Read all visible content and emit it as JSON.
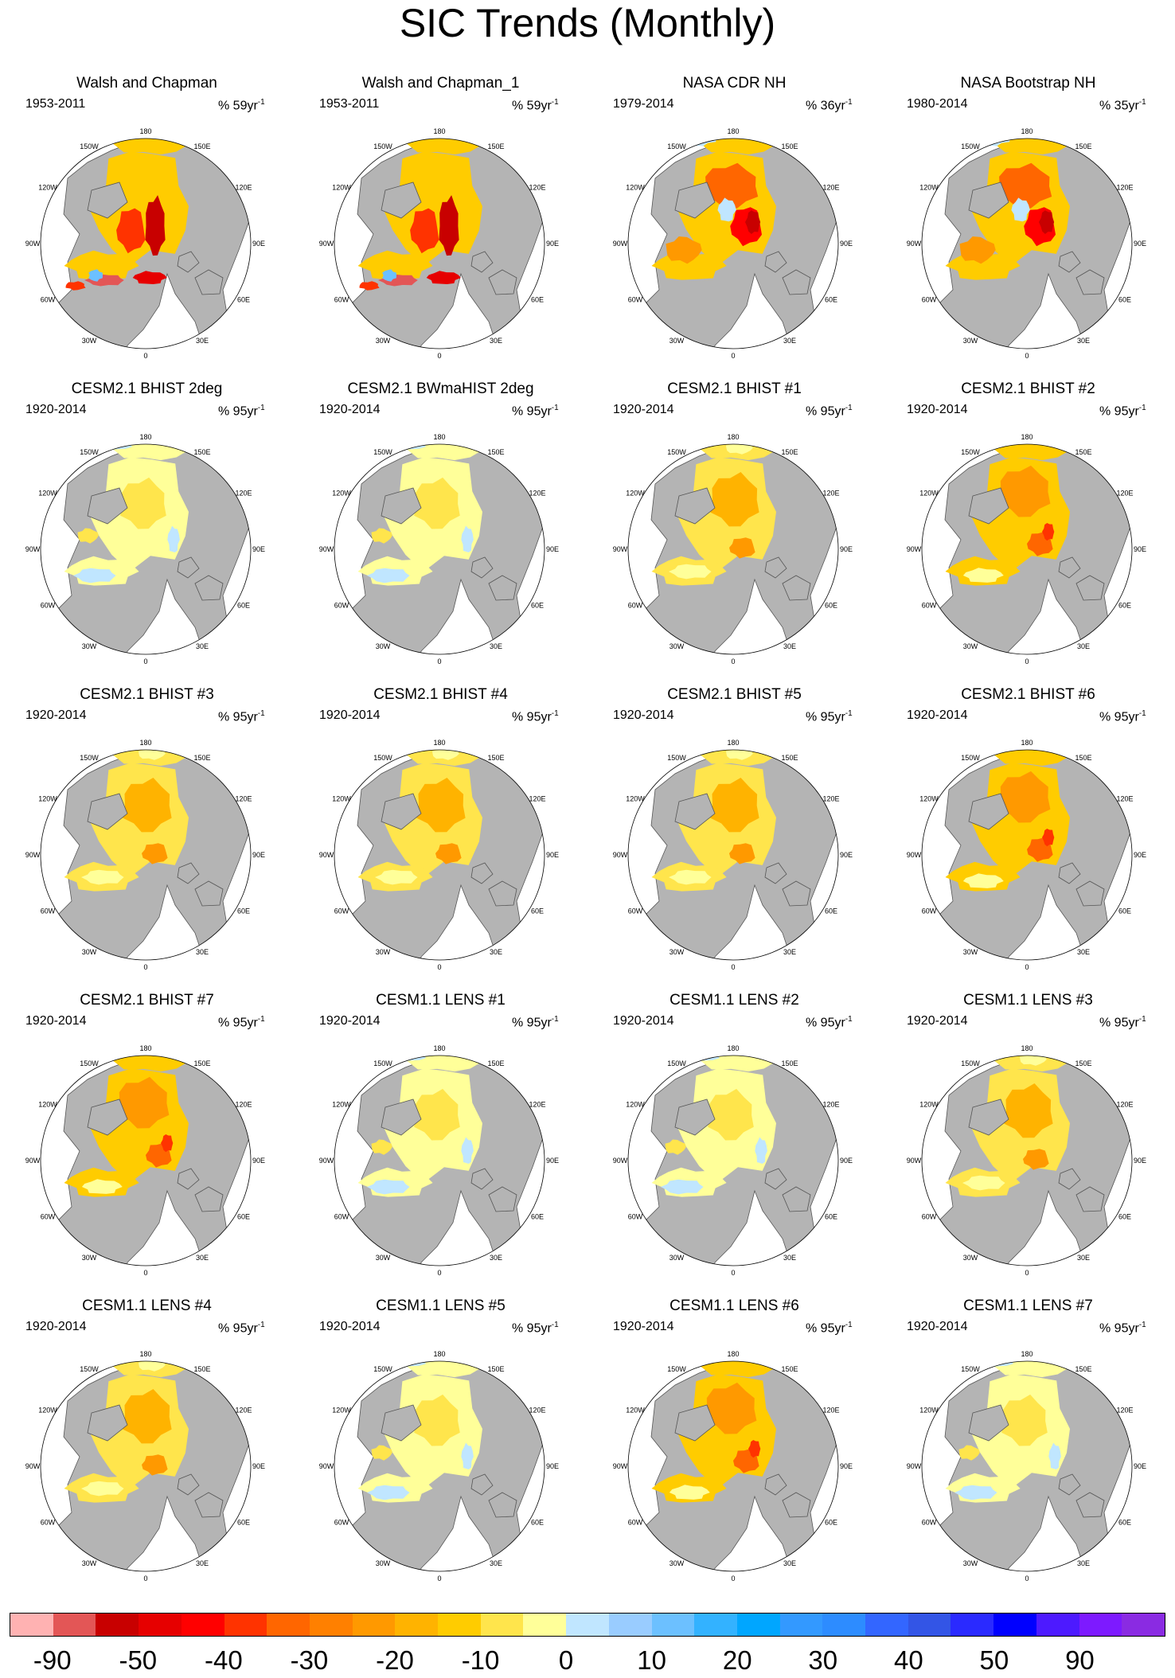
{
  "title": "SIC Trends (Monthly)",
  "units_prefix": "% ",
  "units_base": "yr",
  "units_exp": "-1",
  "lon_labels": [
    "180",
    "150W",
    "120W",
    "90W",
    "60W",
    "30W",
    "0",
    "30E",
    "60E",
    "90E",
    "120E",
    "150E"
  ],
  "colors": {
    "land": "#b4b4b4",
    "ocean": "#ffffff",
    "coast": "#555555",
    "colorbar": [
      "#ffb2b2",
      "#e35656",
      "#c80000",
      "#e60000",
      "#ff0000",
      "#ff3300",
      "#ff6600",
      "#ff8000",
      "#ff9900",
      "#ffb300",
      "#ffcc00",
      "#ffe54c",
      "#ffff99",
      "#c0e6ff",
      "#99ccff",
      "#6cc0ff",
      "#33b2ff",
      "#00a6ff",
      "#3399ff",
      "#2d8cff",
      "#3366ff",
      "#3355e6",
      "#2a2aff",
      "#0000ff",
      "#4d1aff",
      "#7d1aff",
      "#8a2be2"
    ]
  },
  "colorbar_labels": [
    "-90",
    "-50",
    "-40",
    "-30",
    "-20",
    "-10",
    "0",
    "10",
    "20",
    "30",
    "40",
    "50",
    "90"
  ],
  "panels": [
    {
      "title": "Walsh and Chapman",
      "years": "1953-2011",
      "pct": "59",
      "pattern": "obs1"
    },
    {
      "title": "Walsh and Chapman_1",
      "years": "1953-2011",
      "pct": "59",
      "pattern": "obs1"
    },
    {
      "title": "NASA CDR NH",
      "years": "1979-2014",
      "pct": "36",
      "pattern": "sat"
    },
    {
      "title": "NASA Bootstrap NH",
      "years": "1980-2014",
      "pct": "35",
      "pattern": "sat"
    },
    {
      "title": "CESM2.1 BHIST 2deg",
      "years": "1920-2014",
      "pct": "95",
      "pattern": "weak"
    },
    {
      "title": "CESM2.1 BWmaHIST 2deg",
      "years": "1920-2014",
      "pct": "95",
      "pattern": "weak"
    },
    {
      "title": "CESM2.1 BHIST #1",
      "years": "1920-2014",
      "pct": "95",
      "pattern": "mid"
    },
    {
      "title": "CESM2.1 BHIST #2",
      "years": "1920-2014",
      "pct": "95",
      "pattern": "strong"
    },
    {
      "title": "CESM2.1 BHIST #3",
      "years": "1920-2014",
      "pct": "95",
      "pattern": "mid"
    },
    {
      "title": "CESM2.1 BHIST #4",
      "years": "1920-2014",
      "pct": "95",
      "pattern": "mid"
    },
    {
      "title": "CESM2.1 BHIST #5",
      "years": "1920-2014",
      "pct": "95",
      "pattern": "mid"
    },
    {
      "title": "CESM2.1 BHIST #6",
      "years": "1920-2014",
      "pct": "95",
      "pattern": "strong"
    },
    {
      "title": "CESM2.1 BHIST #7",
      "years": "1920-2014",
      "pct": "95",
      "pattern": "strong"
    },
    {
      "title": "CESM1.1 LENS #1",
      "years": "1920-2014",
      "pct": "95",
      "pattern": "weak"
    },
    {
      "title": "CESM1.1 LENS #2",
      "years": "1920-2014",
      "pct": "95",
      "pattern": "weak"
    },
    {
      "title": "CESM1.1 LENS #3",
      "years": "1920-2014",
      "pct": "95",
      "pattern": "mid"
    },
    {
      "title": "CESM1.1 LENS #4",
      "years": "1920-2014",
      "pct": "95",
      "pattern": "mid"
    },
    {
      "title": "CESM1.1 LENS #5",
      "years": "1920-2014",
      "pct": "95",
      "pattern": "weak"
    },
    {
      "title": "CESM1.1 LENS #6",
      "years": "1920-2014",
      "pct": "95",
      "pattern": "strong"
    },
    {
      "title": "CESM1.1 LENS #7",
      "years": "1920-2014",
      "pct": "95",
      "pattern": "weak"
    }
  ]
}
